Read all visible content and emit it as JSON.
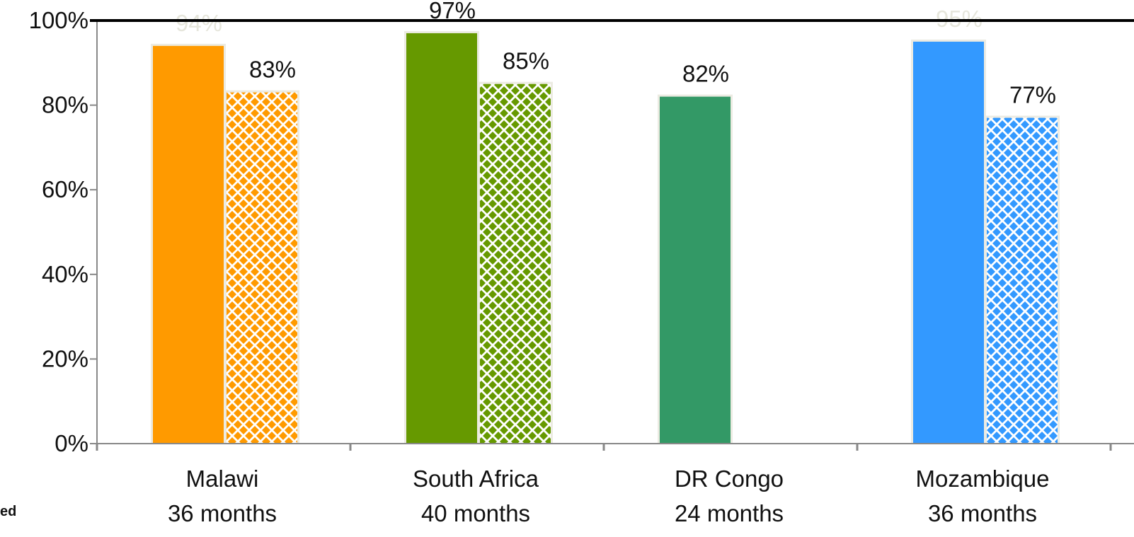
{
  "chart_data": {
    "type": "bar",
    "categories": [
      {
        "line1": "Malawi",
        "line2": "36 months"
      },
      {
        "line1": "South Africa",
        "line2": "40 months"
      },
      {
        "line1": "DR Congo",
        "line2": "24 months"
      },
      {
        "line1": "Mozambique",
        "line2": "36 months"
      }
    ],
    "bars": [
      {
        "category": 0,
        "slot": "solid",
        "value": 94,
        "label": "94%",
        "label_faded": true,
        "color": "#FF9A00"
      },
      {
        "category": 0,
        "slot": "patterned",
        "value": 83,
        "label": "83%",
        "label_faded": false,
        "color": "#FF9A00"
      },
      {
        "category": 1,
        "slot": "solid",
        "value": 97,
        "label": "97%",
        "label_faded": false,
        "color": "#669900"
      },
      {
        "category": 1,
        "slot": "patterned",
        "value": 85,
        "label": "85%",
        "label_faded": false,
        "color": "#669900"
      },
      {
        "category": 2,
        "slot": "solid",
        "value": 82,
        "label": "82%",
        "label_faded": false,
        "color": "#339966"
      },
      {
        "category": 3,
        "slot": "solid",
        "value": 95,
        "label": "95%",
        "label_faded": true,
        "color": "#3399FF"
      },
      {
        "category": 3,
        "slot": "patterned",
        "value": 77,
        "label": "77%",
        "label_faded": false,
        "color": "#3399FF"
      }
    ],
    "yticks": [
      "0%",
      "20%",
      "40%",
      "60%",
      "80%",
      "100%"
    ],
    "ylim": [
      0,
      100
    ],
    "grid": false,
    "reference_line": 100
  },
  "side_text": "ed"
}
